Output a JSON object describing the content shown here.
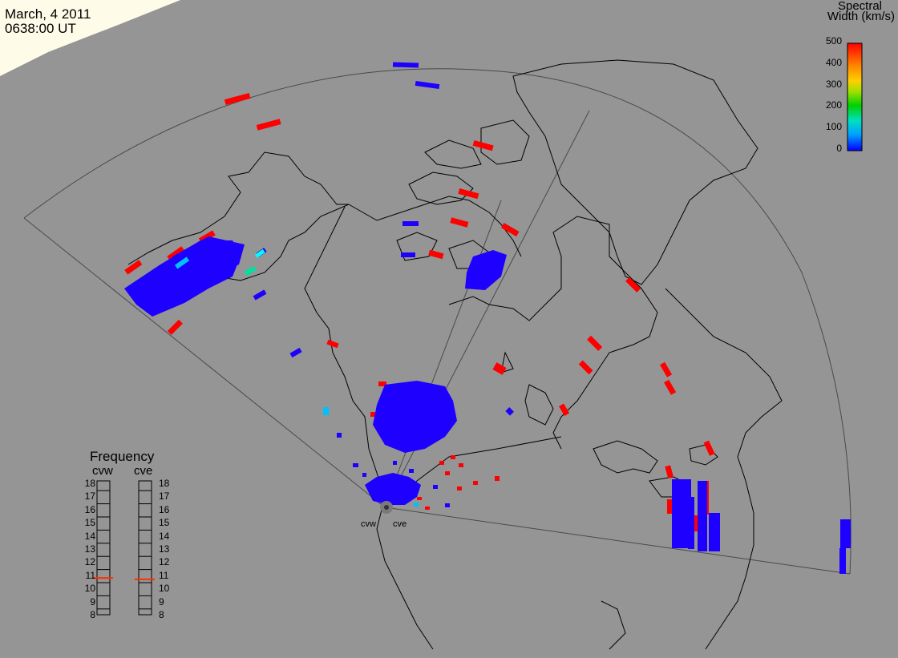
{
  "header": {
    "date": "March, 4 2011",
    "time": "0638:00 UT"
  },
  "colorbar": {
    "title_line1": "Spectral",
    "title_line2": "Width (km/s)",
    "ticks": [
      "500",
      "400",
      "300",
      "200",
      "100",
      "0"
    ],
    "colors": [
      "#0000ff",
      "#00a0ff",
      "#00e0c0",
      "#00d000",
      "#a0e000",
      "#ffd000",
      "#ff8000",
      "#ff0000"
    ]
  },
  "frequency": {
    "title": "Frequency",
    "radars": [
      "cvw",
      "cve"
    ],
    "scale": [
      "18",
      "17",
      "16",
      "15",
      "14",
      "13",
      "12",
      "11",
      "10",
      "9",
      "8"
    ],
    "cvw_mhz": 10.8,
    "cve_mhz": 10.7,
    "marker_color": "#ff3000"
  },
  "radars": {
    "west": "cvw",
    "east": "cve"
  },
  "colors": {
    "background": "#959595",
    "high_width": "#ff0000",
    "low_width": "#1e00ff"
  }
}
